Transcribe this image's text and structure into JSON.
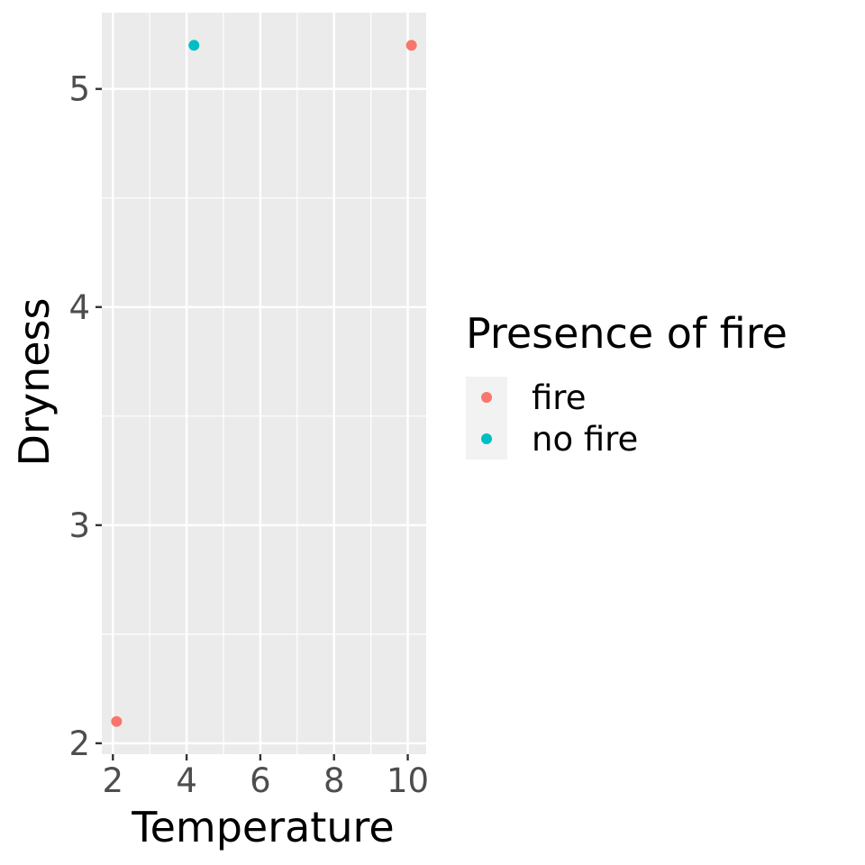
{
  "chart_data": {
    "type": "scatter",
    "xlabel": "Temperature",
    "ylabel": "Dryness",
    "xlim": [
      1.7,
      10.5
    ],
    "ylim": [
      1.95,
      5.35
    ],
    "x_ticks": [
      2,
      4,
      6,
      8,
      10
    ],
    "y_ticks": [
      2,
      3,
      4,
      5
    ],
    "x_tick_labels": [
      "2",
      "4",
      "6",
      "8",
      "10"
    ],
    "y_tick_labels": [
      "2",
      "3",
      "4",
      "5"
    ],
    "grid": true,
    "legend": {
      "title": "Presence of fire",
      "placement": "right",
      "entries": [
        {
          "label": "fire",
          "color": "#F8766D"
        },
        {
          "label": "no fire",
          "color": "#00BFC4"
        }
      ]
    },
    "series": [
      {
        "name": "fire",
        "color": "#F8766D",
        "points": [
          {
            "x": 2.1,
            "y": 2.1
          },
          {
            "x": 10.1,
            "y": 5.2
          }
        ]
      },
      {
        "name": "no fire",
        "color": "#00BFC4",
        "points": [
          {
            "x": 4.2,
            "y": 5.2
          }
        ]
      }
    ]
  }
}
